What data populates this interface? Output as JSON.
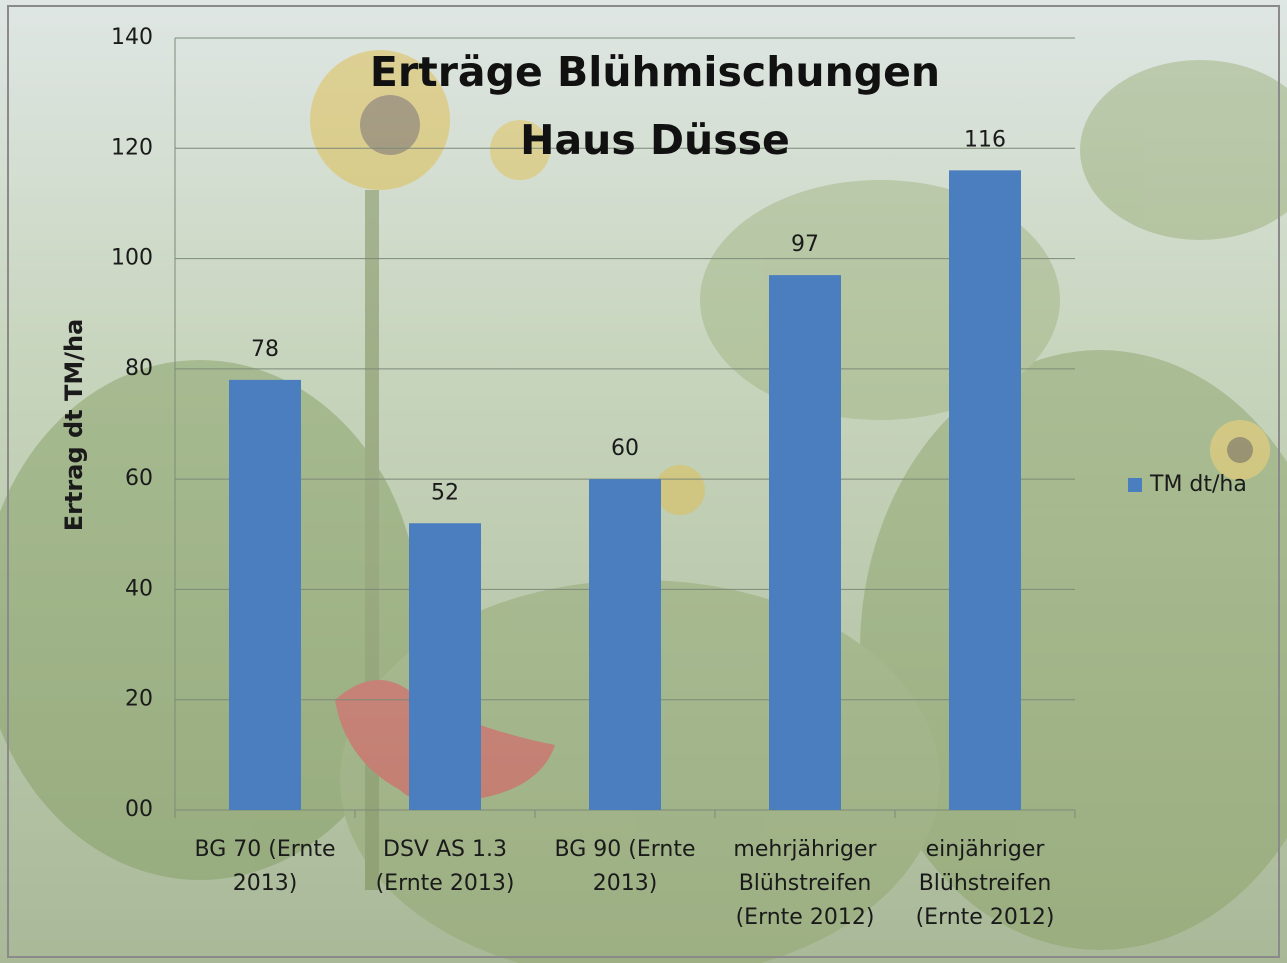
{
  "chart_data": {
    "type": "bar",
    "title": "Erträge Blühmischungen Haus Düsse",
    "y_label": "Ertrag dt TM/ha",
    "categories": [
      "BG 70 (Ernte 2013)",
      "DSV AS 1.3 (Ernte 2013)",
      "BG 90 (Ernte 2013)",
      "mehrjähriger Blühstreifen (Ernte 2012)",
      "einjähriger Blühstreifen (Ernte 2012)"
    ],
    "series": [
      {
        "name": "TM dt/ha",
        "color": "#4a7ebf",
        "values": [
          78,
          52,
          60,
          97,
          116
        ]
      }
    ],
    "ylim": [
      0,
      140
    ],
    "yticks": [
      {
        "value": 0,
        "label": "00"
      },
      20,
      40,
      60,
      80,
      100,
      120,
      140
    ],
    "grid": true,
    "legend": "right"
  }
}
